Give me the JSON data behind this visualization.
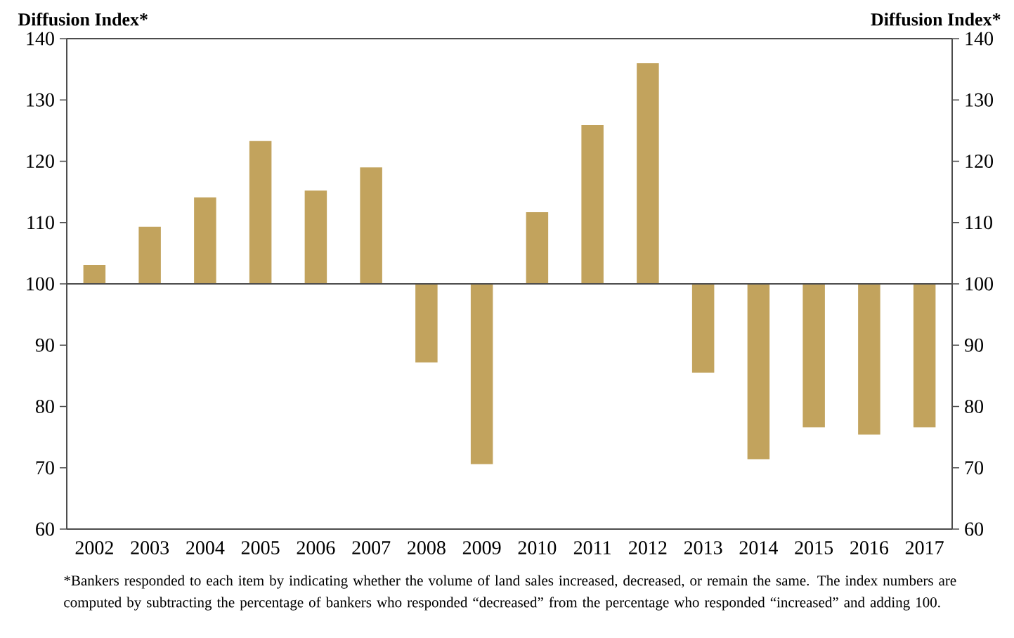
{
  "chart_data": {
    "type": "bar",
    "ylabel": "Diffusion Index*",
    "y2label": "Diffusion Index*",
    "categories": [
      "2002",
      "2003",
      "2004",
      "2005",
      "2006",
      "2007",
      "2008",
      "2009",
      "2010",
      "2011",
      "2012",
      "2013",
      "2014",
      "2015",
      "2016",
      "2017"
    ],
    "base": [
      100,
      100,
      100,
      100,
      100,
      100,
      100,
      100,
      100,
      100,
      100,
      100,
      100,
      100,
      100,
      100
    ],
    "values": [
      3.1,
      9.3,
      14.1,
      23.3,
      15.2,
      19.0,
      -12.8,
      -29.4,
      11.7,
      25.9,
      36.0,
      -14.5,
      -28.6,
      -23.4,
      -24.6,
      -23.4
    ],
    "color": "#c2a35d",
    "ylim": [
      60,
      140
    ],
    "yticks": [
      60,
      70,
      80,
      90,
      100,
      110,
      120,
      130,
      140
    ],
    "y2lim": [
      60,
      140
    ],
    "y2ticks": [
      60,
      70,
      80,
      90,
      100,
      110,
      120,
      130,
      140
    ],
    "annotations": [
      "*Bankers responded to each item by indicating whether the volume of land sales increased, decreased, or remain the same. The index numbers are computed by subtracting the percentage of bankers who responded “decreased” from the percentage who responded “increased” and adding 100."
    ]
  }
}
